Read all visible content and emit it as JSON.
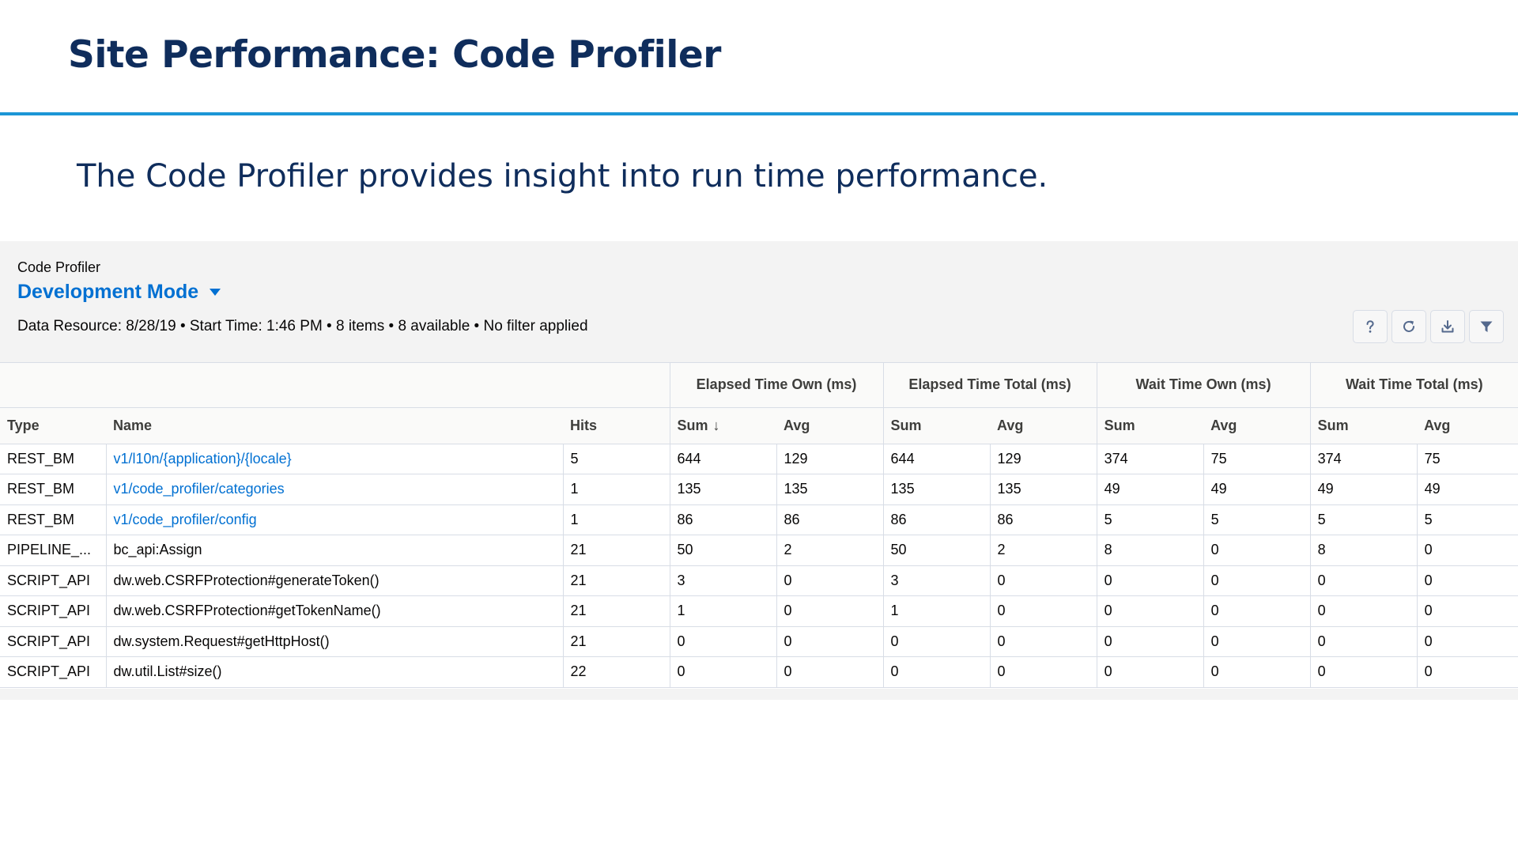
{
  "slide": {
    "title": "Site Performance: Code Profiler",
    "subtitle": "The Code Profiler provides insight into run time performance."
  },
  "profiler": {
    "eyebrow": "Code Profiler",
    "mode": "Development Mode",
    "meta": "Data Resource: 8/28/19 • Start Time: 1:46 PM • 8 items • 8 available • No filter applied"
  },
  "toolbar": {
    "help_icon": "help-icon",
    "refresh_icon": "refresh-icon",
    "download_icon": "download-icon",
    "filter_icon": "filter-icon"
  },
  "table": {
    "groups": [
      "Elapsed Time Own (ms)",
      "Elapsed Time Total (ms)",
      "Wait Time Own (ms)",
      "Wait Time Total (ms)"
    ],
    "columns": [
      "Type",
      "Name",
      "Hits",
      "Sum",
      "Avg",
      "Sum",
      "Avg",
      "Sum",
      "Avg",
      "Sum",
      "Avg"
    ],
    "sort_arrow": "↓",
    "rows": [
      [
        "REST_BM",
        "v1/l10n/{application}/{locale}",
        "5",
        "644",
        "129",
        "644",
        "129",
        "374",
        "75",
        "374",
        "75"
      ],
      [
        "REST_BM",
        "v1/code_profiler/categories",
        "1",
        "135",
        "135",
        "135",
        "135",
        "49",
        "49",
        "49",
        "49"
      ],
      [
        "REST_BM",
        "v1/code_profiler/config",
        "1",
        "86",
        "86",
        "86",
        "86",
        "5",
        "5",
        "5",
        "5"
      ],
      [
        "PIPELINE_...",
        "bc_api:Assign",
        "21",
        "50",
        "2",
        "50",
        "2",
        "8",
        "0",
        "8",
        "0"
      ],
      [
        "SCRIPT_API",
        "dw.web.CSRFProtection#generateToken()",
        "21",
        "3",
        "0",
        "3",
        "0",
        "0",
        "0",
        "0",
        "0"
      ],
      [
        "SCRIPT_API",
        "dw.web.CSRFProtection#getTokenName()",
        "21",
        "1",
        "0",
        "1",
        "0",
        "0",
        "0",
        "0",
        "0"
      ],
      [
        "SCRIPT_API",
        "dw.system.Request#getHttpHost()",
        "21",
        "0",
        "0",
        "0",
        "0",
        "0",
        "0",
        "0",
        "0"
      ],
      [
        "SCRIPT_API",
        "dw.util.List#size()",
        "22",
        "0",
        "0",
        "0",
        "0",
        "0",
        "0",
        "0",
        "0"
      ]
    ],
    "link_rows": [
      0,
      1,
      2
    ]
  }
}
